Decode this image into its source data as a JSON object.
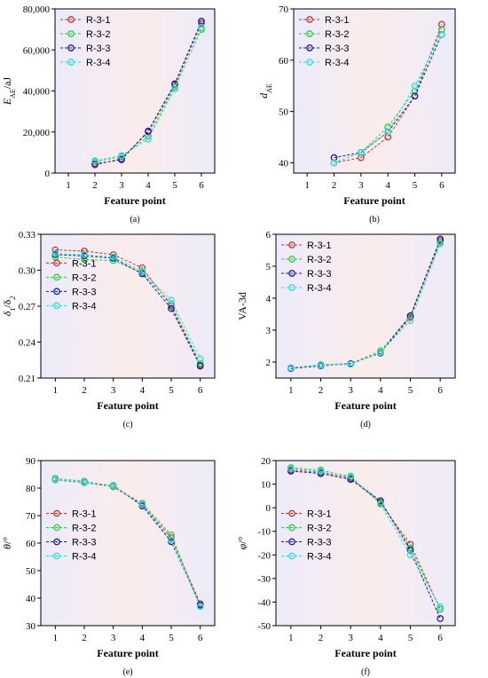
{
  "colors": {
    "R-3-1": "#c0392b",
    "R-3-2": "#2ecc40",
    "R-3-3": "#1a1aa6",
    "R-3-4": "#33dddd"
  },
  "chart_data": [
    {
      "type": "line",
      "caption": "(a)",
      "xlabel": "Feature point",
      "ylabel": "E_AE/aJ",
      "ylabel_main": "E",
      "ylabel_sub": "AE",
      "ylabel_unit": "/aJ",
      "x_ticks": [
        1,
        2,
        3,
        4,
        5,
        6
      ],
      "xlim": [
        0.5,
        6.5
      ],
      "ylim": [
        0,
        80000
      ],
      "y_ticks": [
        0,
        20000,
        40000,
        60000,
        80000
      ],
      "y_tick_labels": [
        "0",
        "20,000",
        "40,000",
        "60,000",
        "80,000"
      ],
      "legend": "top-left",
      "series": [
        {
          "name": "R-3-1",
          "x": [
            2,
            3,
            4,
            5,
            6
          ],
          "y": [
            4000,
            7000,
            20000,
            43000,
            73000
          ]
        },
        {
          "name": "R-3-2",
          "x": [
            2,
            3,
            4,
            5,
            6
          ],
          "y": [
            5500,
            8000,
            18000,
            42000,
            70000
          ]
        },
        {
          "name": "R-3-3",
          "x": [
            2,
            3,
            4,
            5,
            6
          ],
          "y": [
            4500,
            6500,
            20500,
            43500,
            74000
          ]
        },
        {
          "name": "R-3-4",
          "x": [
            2,
            3,
            4,
            5,
            6
          ],
          "y": [
            6000,
            8500,
            16500,
            41000,
            71000
          ]
        }
      ]
    },
    {
      "type": "line",
      "caption": "(b)",
      "xlabel": "Feature point",
      "ylabel": "d_AE",
      "ylabel_main": "d",
      "ylabel_sub": "AE",
      "ylabel_unit": "",
      "x_ticks": [
        1,
        2,
        3,
        4,
        5,
        6
      ],
      "xlim": [
        0.5,
        6.5
      ],
      "ylim": [
        38,
        70
      ],
      "y_ticks": [
        40,
        50,
        60,
        70
      ],
      "y_tick_labels": [
        "40",
        "50",
        "60",
        "70"
      ],
      "legend": "top-left",
      "series": [
        {
          "name": "R-3-1",
          "x": [
            2,
            3,
            4,
            5,
            6
          ],
          "y": [
            40,
            41,
            45,
            53,
            67
          ]
        },
        {
          "name": "R-3-2",
          "x": [
            2,
            3,
            4,
            5,
            6
          ],
          "y": [
            40,
            42,
            47,
            54,
            66
          ]
        },
        {
          "name": "R-3-3",
          "x": [
            2,
            3,
            4,
            5,
            6
          ],
          "y": [
            41,
            42,
            46,
            53,
            65
          ]
        },
        {
          "name": "R-3-4",
          "x": [
            2,
            3,
            4,
            5,
            6
          ],
          "y": [
            40,
            42,
            46,
            55,
            65
          ]
        }
      ]
    },
    {
      "type": "line",
      "caption": "(c)",
      "xlabel": "Feature point",
      "ylabel": "δ1/δ2",
      "ylabel_main": "δ",
      "ylabel_sub": "1",
      "ylabel_unit": "/δ",
      "ylabel_sub2": "2",
      "x_ticks": [
        1,
        2,
        3,
        4,
        5,
        6
      ],
      "xlim": [
        0.5,
        6.5
      ],
      "ylim": [
        0.21,
        0.33
      ],
      "y_ticks": [
        0.21,
        0.24,
        0.27,
        0.3,
        0.33
      ],
      "y_tick_labels": [
        "0.21",
        "0.24",
        "0.27",
        "0.30",
        "0.33"
      ],
      "legend": "middle-left",
      "series": [
        {
          "name": "R-3-1",
          "x": [
            1,
            2,
            3,
            4,
            5,
            6
          ],
          "y": [
            0.317,
            0.316,
            0.313,
            0.302,
            0.27,
            0.221
          ]
        },
        {
          "name": "R-3-2",
          "x": [
            1,
            2,
            3,
            4,
            5,
            6
          ],
          "y": [
            0.311,
            0.309,
            0.308,
            0.298,
            0.272,
            0.222
          ]
        },
        {
          "name": "R-3-3",
          "x": [
            1,
            2,
            3,
            4,
            5,
            6
          ],
          "y": [
            0.313,
            0.312,
            0.31,
            0.297,
            0.268,
            0.22
          ]
        },
        {
          "name": "R-3-4",
          "x": [
            1,
            2,
            3,
            4,
            5,
            6
          ],
          "y": [
            0.314,
            0.313,
            0.311,
            0.299,
            0.275,
            0.226
          ]
        }
      ]
    },
    {
      "type": "line",
      "caption": "(d)",
      "xlabel": "Feature point",
      "ylabel": "VA-3d",
      "ylabel_main": "VA-3d",
      "ylabel_sub": "",
      "ylabel_unit": "",
      "x_ticks": [
        1,
        2,
        3,
        4,
        5,
        6
      ],
      "xlim": [
        0.5,
        6.5
      ],
      "ylim": [
        1.5,
        6
      ],
      "y_ticks": [
        2,
        3,
        4,
        5,
        6
      ],
      "y_tick_labels": [
        "2",
        "3",
        "4",
        "5",
        "6"
      ],
      "legend": "top-left",
      "series": [
        {
          "name": "R-3-1",
          "x": [
            1,
            2,
            3,
            4,
            5,
            6
          ],
          "y": [
            1.8,
            1.9,
            1.95,
            2.3,
            3.4,
            5.8
          ]
        },
        {
          "name": "R-3-2",
          "x": [
            1,
            2,
            3,
            4,
            5,
            6
          ],
          "y": [
            1.82,
            1.92,
            1.95,
            2.35,
            3.45,
            5.75
          ]
        },
        {
          "name": "R-3-3",
          "x": [
            1,
            2,
            3,
            4,
            5,
            6
          ],
          "y": [
            1.8,
            1.88,
            1.95,
            2.28,
            3.45,
            5.85
          ]
        },
        {
          "name": "R-3-4",
          "x": [
            1,
            2,
            3,
            4,
            5,
            6
          ],
          "y": [
            1.82,
            1.9,
            1.93,
            2.3,
            3.3,
            5.7
          ]
        }
      ]
    },
    {
      "type": "line",
      "caption": "(e)",
      "xlabel": "Feature point",
      "ylabel": "θ/°",
      "ylabel_main": "θ",
      "ylabel_sub": "",
      "ylabel_unit": "/°",
      "x_ticks": [
        1,
        2,
        3,
        4,
        5,
        6
      ],
      "xlim": [
        0.5,
        6.5
      ],
      "ylim": [
        30,
        90
      ],
      "y_ticks": [
        30,
        40,
        50,
        60,
        70,
        80,
        90
      ],
      "y_tick_labels": [
        "30",
        "40",
        "50",
        "60",
        "70",
        "80",
        "90"
      ],
      "legend": "middle-left",
      "series": [
        {
          "name": "R-3-1",
          "x": [
            1,
            2,
            3,
            4,
            5,
            6
          ],
          "y": [
            83,
            82,
            80.5,
            74,
            62,
            38
          ]
        },
        {
          "name": "R-3-2",
          "x": [
            1,
            2,
            3,
            4,
            5,
            6
          ],
          "y": [
            83.5,
            82.5,
            80.5,
            74.5,
            63,
            37
          ]
        },
        {
          "name": "R-3-3",
          "x": [
            1,
            2,
            3,
            4,
            5,
            6
          ],
          "y": [
            83,
            82,
            81,
            73.5,
            60.5,
            37.5
          ]
        },
        {
          "name": "R-3-4",
          "x": [
            1,
            2,
            3,
            4,
            5,
            6
          ],
          "y": [
            83,
            82,
            81,
            74,
            61,
            37
          ]
        }
      ]
    },
    {
      "type": "line",
      "caption": "(f)",
      "xlabel": "Feature point",
      "ylabel": "φ/°",
      "ylabel_main": "φ",
      "ylabel_sub": "",
      "ylabel_unit": "/°",
      "x_ticks": [
        1,
        2,
        3,
        4,
        5,
        6
      ],
      "xlim": [
        0.5,
        6.5
      ],
      "ylim": [
        -50,
        20
      ],
      "y_ticks": [
        -50,
        -40,
        -30,
        -20,
        -10,
        0,
        10,
        20
      ],
      "y_tick_labels": [
        "-50",
        "-40",
        "-30",
        "-20",
        "-10",
        "0",
        "10",
        "20"
      ],
      "legend": "middle-left",
      "series": [
        {
          "name": "R-3-1",
          "x": [
            1,
            2,
            3,
            4,
            5,
            6
          ],
          "y": [
            16,
            15,
            12.5,
            2,
            -15.5,
            -43
          ]
        },
        {
          "name": "R-3-2",
          "x": [
            1,
            2,
            3,
            4,
            5,
            6
          ],
          "y": [
            17,
            16,
            13,
            2.5,
            -17,
            -43
          ]
        },
        {
          "name": "R-3-3",
          "x": [
            1,
            2,
            3,
            4,
            5,
            6
          ],
          "y": [
            15.5,
            14.5,
            12,
            3,
            -18,
            -47
          ]
        },
        {
          "name": "R-3-4",
          "x": [
            1,
            2,
            3,
            4,
            5,
            6
          ],
          "y": [
            16.5,
            15.5,
            13.5,
            1.5,
            -20,
            -42
          ]
        }
      ]
    }
  ]
}
